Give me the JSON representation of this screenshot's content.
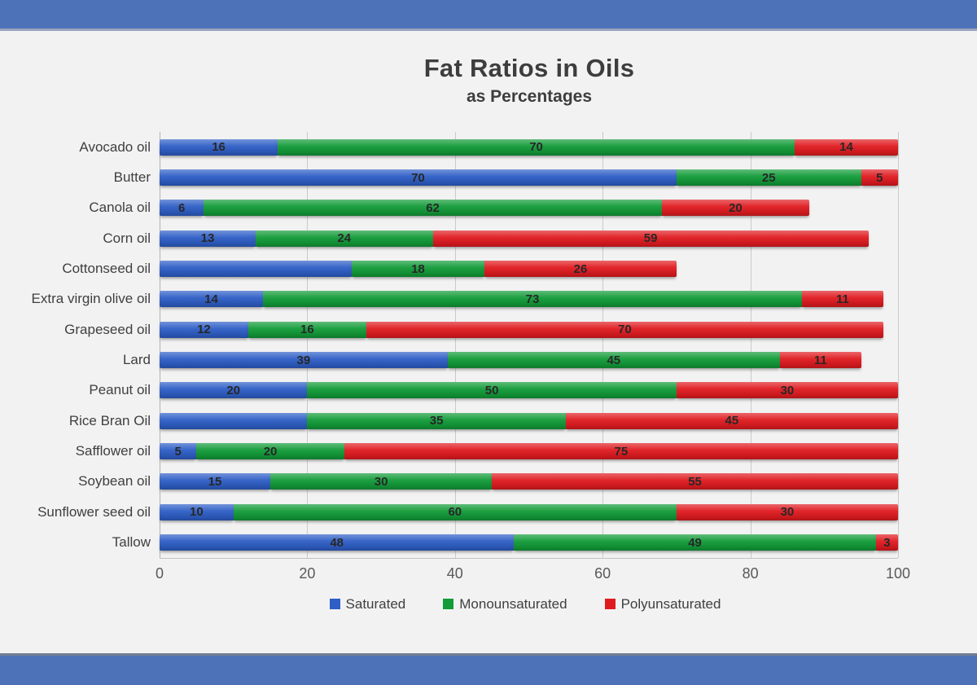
{
  "page": {
    "background": "#f2f2f2",
    "banner_color": "#4d72b8"
  },
  "chart_data": {
    "type": "bar",
    "stacked": true,
    "orientation": "horizontal",
    "title": "Fat Ratios in Oils",
    "subtitle": "as Percentages",
    "categories": [
      "Avocado oil",
      "Butter",
      "Canola oil",
      "Corn oil",
      "Cottonseed oil",
      "Extra virgin olive oil",
      "Grapeseed oil",
      "Lard",
      "Peanut oil",
      "Rice Bran Oil",
      "Safflower oil",
      "Soybean oil",
      "Sunflower seed oil",
      "Tallow"
    ],
    "series": [
      {
        "name": "Saturated",
        "color": "#2e5ec6",
        "values": [
          16,
          70,
          6,
          13,
          26,
          14,
          12,
          39,
          20,
          20,
          5,
          15,
          10,
          48
        ],
        "labels": [
          "16",
          "70",
          "6",
          "13",
          "",
          "14",
          "12",
          "39",
          "20",
          "",
          "5",
          "15",
          "10",
          "48"
        ]
      },
      {
        "name": "Monounsaturated",
        "color": "#129b38",
        "values": [
          70,
          25,
          62,
          24,
          18,
          73,
          16,
          45,
          50,
          35,
          20,
          30,
          60,
          49
        ],
        "labels": [
          "70",
          "25",
          "62",
          "24",
          "18",
          "73",
          "16",
          "45",
          "50",
          "35",
          "20",
          "30",
          "60",
          "49"
        ]
      },
      {
        "name": "Polyunsaturated",
        "color": "#e01b20",
        "values": [
          14,
          5,
          20,
          59,
          26,
          11,
          70,
          11,
          30,
          45,
          75,
          55,
          30,
          3
        ],
        "labels": [
          "14",
          "5",
          "20",
          "59",
          "26",
          "11",
          "70",
          "11",
          "30",
          "45",
          "75",
          "55",
          "30",
          "3"
        ]
      }
    ],
    "x_ticks": [
      "0",
      "20",
      "40",
      "60",
      "80",
      "100"
    ],
    "xlim": [
      0,
      100
    ],
    "grid": "vertical",
    "legend_position": "bottom"
  }
}
